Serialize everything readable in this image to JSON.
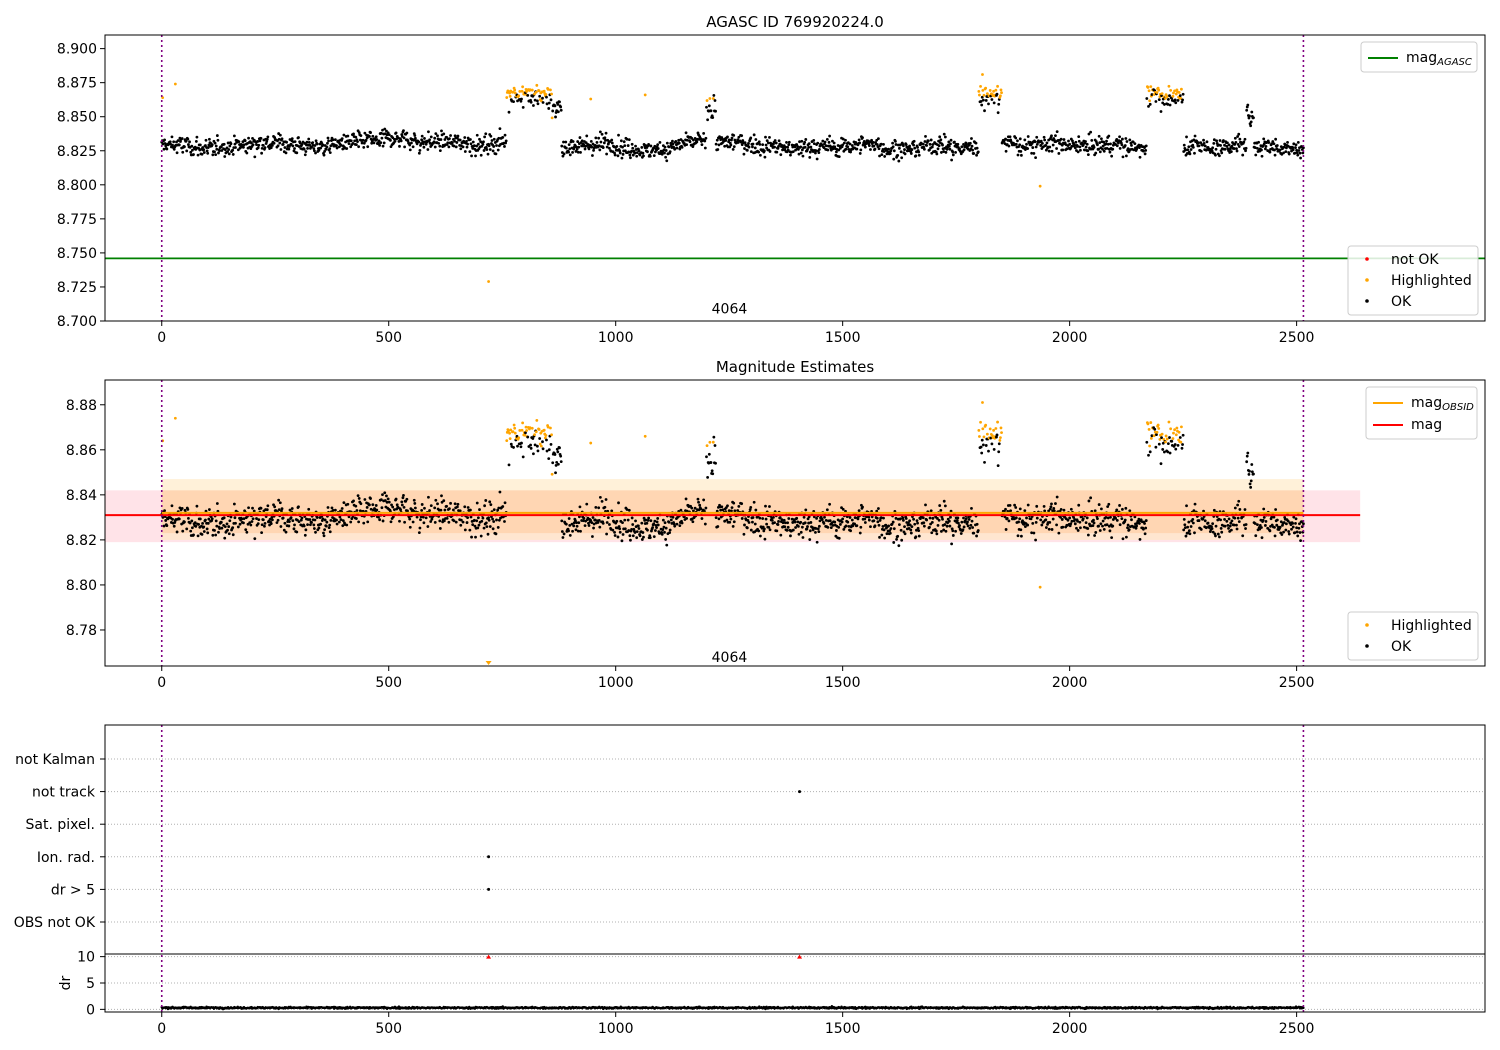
{
  "figure": {
    "width": 1500,
    "height": 1050
  },
  "chart_data": [
    {
      "type": "scatter",
      "title": "AGASC ID 769920224.0",
      "xlim": [
        -125,
        2915
      ],
      "ylim": [
        8.7,
        8.91
      ],
      "x_ticks": [
        0,
        500,
        1000,
        1500,
        2000,
        2500
      ],
      "x_tick_labels": [
        "0",
        "500",
        "1000",
        "1500",
        "2000",
        "2500"
      ],
      "y_ticks": [
        8.7,
        8.725,
        8.75,
        8.775,
        8.8,
        8.825,
        8.85,
        8.875,
        8.9
      ],
      "y_tick_labels": [
        "8.700",
        "8.725",
        "8.750",
        "8.775",
        "8.800",
        "8.825",
        "8.850",
        "8.875",
        "8.900"
      ],
      "obsid_label": {
        "text": "4064",
        "x": 1255,
        "y": 8.709
      },
      "vlines": [
        0,
        2515
      ],
      "hline": {
        "name": "mag_AGASC",
        "y": 8.746,
        "color": "#008000"
      },
      "line_legend": [
        {
          "label": "mag",
          "sub": "AGASC",
          "color": "#008000"
        }
      ],
      "point_legend": [
        {
          "label": "not OK",
          "color": "#ff0000"
        },
        {
          "label": "Highlighted",
          "color": "#ffa500"
        },
        {
          "label": "OK",
          "color": "#000000"
        }
      ],
      "series_colors": {
        "ok": "#000000",
        "highlighted": "#ffa500"
      },
      "base_level": 8.829,
      "noise": 0.0085,
      "bumps": [
        {
          "x": [
            760,
            860
          ],
          "level": 8.862,
          "color": "highlighted",
          "fraction": 0.55
        },
        {
          "x": [
            860,
            880
          ],
          "level": 8.857,
          "color": "ok",
          "fraction": 0
        },
        {
          "x": [
            1800,
            1850
          ],
          "level": 8.862,
          "color": "highlighted",
          "fraction": 0.5
        },
        {
          "x": [
            2170,
            2250
          ],
          "level": 8.862,
          "color": "highlighted",
          "fraction": 0.5
        },
        {
          "x": [
            1200,
            1220
          ],
          "level": 8.855,
          "color": "ok",
          "fraction": 0.25
        },
        {
          "x": [
            2390,
            2405
          ],
          "level": 8.852,
          "color": "ok",
          "fraction": 0
        }
      ],
      "extra_points": [
        {
          "x": 2,
          "y": 8.864,
          "color": "highlighted"
        },
        {
          "x": 30,
          "y": 8.874,
          "color": "highlighted"
        },
        {
          "x": 720,
          "y": 8.729,
          "color": "highlighted"
        },
        {
          "x": 945,
          "y": 8.863,
          "color": "highlighted"
        },
        {
          "x": 1065,
          "y": 8.866,
          "color": "highlighted"
        },
        {
          "x": 1935,
          "y": 8.799,
          "color": "highlighted"
        },
        {
          "x": 1808,
          "y": 8.881,
          "color": "highlighted"
        }
      ]
    },
    {
      "type": "scatter",
      "title": "Magnitude Estimates",
      "xlim": [
        -125,
        2915
      ],
      "ylim": [
        8.764,
        8.891
      ],
      "x_ticks": [
        0,
        500,
        1000,
        1500,
        2000,
        2500
      ],
      "x_tick_labels": [
        "0",
        "500",
        "1000",
        "1500",
        "2000",
        "2500"
      ],
      "y_ticks": [
        8.78,
        8.8,
        8.82,
        8.84,
        8.86,
        8.88
      ],
      "y_tick_labels": [
        "8.78",
        "8.80",
        "8.82",
        "8.84",
        "8.86",
        "8.88"
      ],
      "obsid_label": {
        "text": "4064",
        "x": 1255,
        "y": 8.768
      },
      "vlines": [
        0,
        2515
      ],
      "bands": [
        {
          "x": [
            -125,
            2640
          ],
          "y": [
            8.819,
            8.842
          ],
          "color": "#ffc0cb",
          "opacity": 0.45
        },
        {
          "x": [
            0,
            2515
          ],
          "y": [
            8.82,
            8.847
          ],
          "color": "#ffe8c0",
          "opacity": 0.6
        },
        {
          "x": [
            0,
            2515
          ],
          "y": [
            8.823,
            8.842
          ],
          "color": "#ffc89a",
          "opacity": 0.55
        }
      ],
      "lines": [
        {
          "name": "mag_OBSID",
          "y": 8.832,
          "x": [
            0,
            2515
          ],
          "color": "#ffa500"
        },
        {
          "name": "mag",
          "y": 8.831,
          "x": [
            -125,
            2640
          ],
          "color": "#ff0000"
        }
      ],
      "line_legend": [
        {
          "label": "mag",
          "sub": "OBSID",
          "color": "#ffa500"
        },
        {
          "label": "mag",
          "sub": "",
          "color": "#ff0000"
        }
      ],
      "point_legend": [
        {
          "label": "Highlighted",
          "color": "#ffa500"
        },
        {
          "label": "OK",
          "color": "#000000"
        }
      ],
      "clip_marker": {
        "x": 720,
        "color": "#ffa500"
      },
      "same_series_as": 0
    },
    {
      "type": "flags",
      "xlim": [
        -125,
        2915
      ],
      "x_ticks": [
        0,
        500,
        1000,
        1500,
        2000,
        2500
      ],
      "x_tick_labels": [
        "0",
        "500",
        "1000",
        "1500",
        "2000",
        "2500"
      ],
      "vlines": [
        0,
        2515
      ],
      "flag_rows": [
        "not Kalman",
        "not track",
        "Sat. pixel.",
        "Ion. rad.",
        "dr > 5",
        "OBS not OK"
      ],
      "flag_points": [
        {
          "row": "not track",
          "x": 1405
        },
        {
          "row": "Ion. rad.",
          "x": 720
        },
        {
          "row": "dr > 5",
          "x": 720
        }
      ],
      "dr_ylabel": "dr",
      "dr_ylim": [
        -0.5,
        10.5
      ],
      "dr_ticks": [
        0,
        5,
        10
      ],
      "dr_tick_labels": [
        "0",
        "5",
        "10"
      ],
      "dr_typical": 0.3,
      "dr_outliers": [
        {
          "x": 720,
          "y": 10
        },
        {
          "x": 1405,
          "y": 10
        }
      ]
    }
  ]
}
